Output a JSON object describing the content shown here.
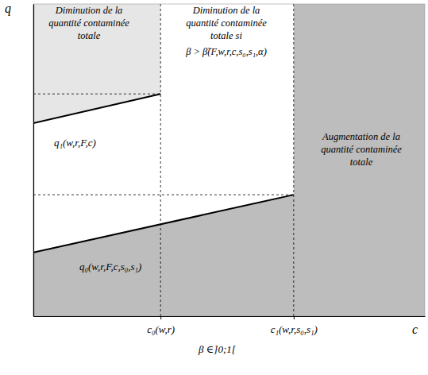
{
  "chart_data": {
    "type": "line",
    "x_label": "c",
    "y_label": "q",
    "footnote": "β ∈]0;1[",
    "xlim": [
      0,
      100
    ],
    "ylim": [
      0,
      100
    ],
    "xticks": [
      {
        "value": 32.5,
        "label": "c₀(w,r)"
      },
      {
        "value": 66.5,
        "label": "c₁(w,r,s₀,s₁)"
      }
    ],
    "yticks": [],
    "tick_labels": "x",
    "series": [
      {
        "name": "q₁(w,r,F,c)",
        "color": "#000000",
        "x": [
          0,
          32.5
        ],
        "values": [
          61.8,
          71.2
        ]
      },
      {
        "name": "q₀(w,r,F,c,s₀,s₁)",
        "color": "#000000",
        "x": [
          0,
          66.5
        ],
        "values": [
          20.4,
          38.9
        ]
      }
    ],
    "annotations": [
      [
        "Diminution de la",
        "quantité contaminée",
        "totale"
      ],
      [
        "Diminution de la",
        "quantité contaminée",
        "totale si",
        "β > β̃(F,w,r,c,s₀,s₁,α)"
      ],
      [
        "Augmentation de la",
        "quantité contaminée",
        "totale"
      ]
    ]
  }
}
